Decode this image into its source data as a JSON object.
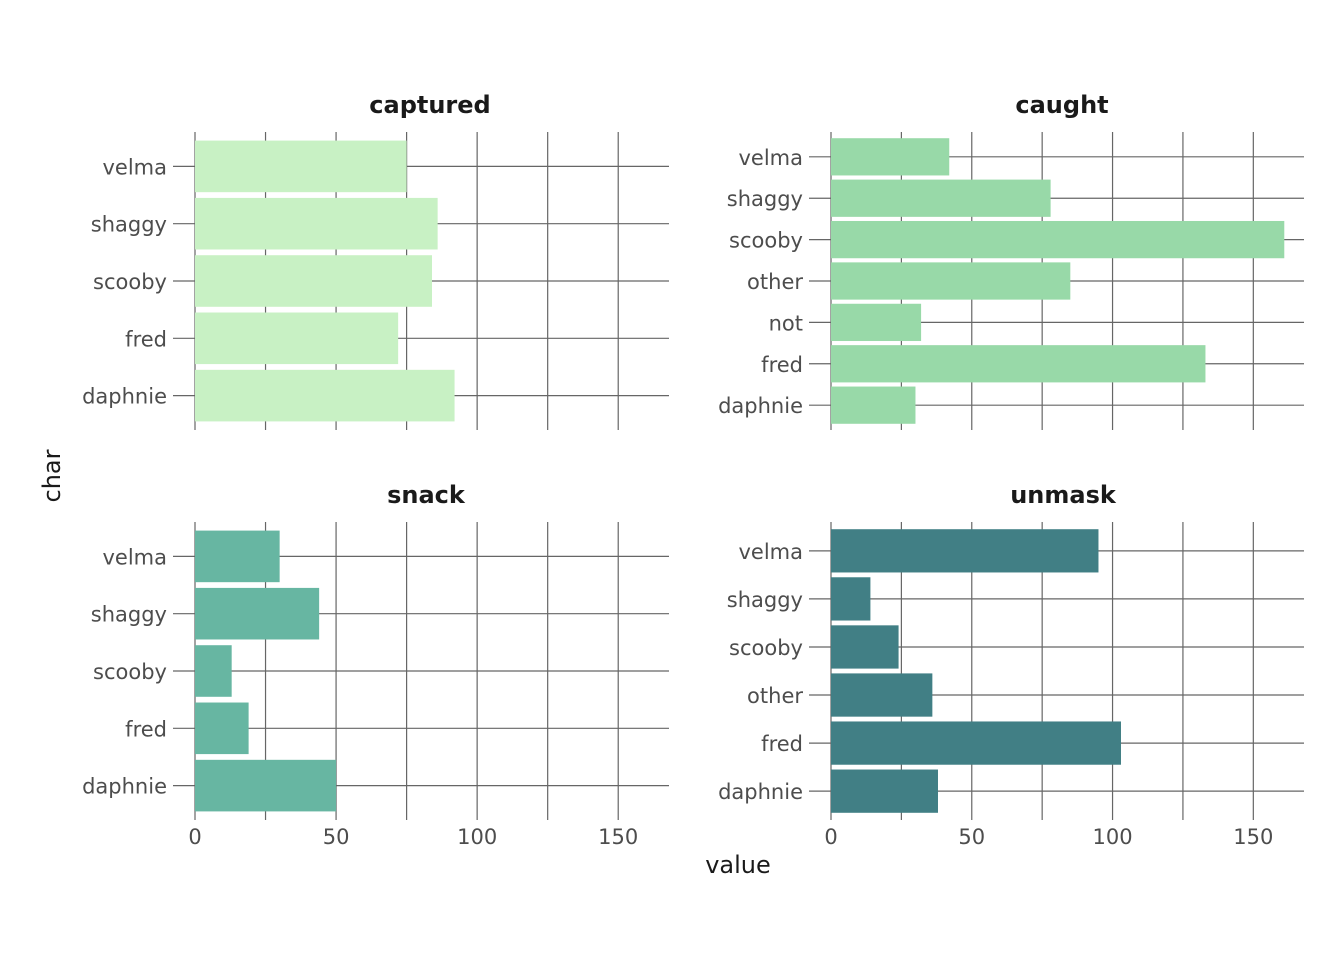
{
  "chart_data": {
    "type": "bar",
    "orientation": "horizontal",
    "xlabel": "value",
    "ylabel": "char",
    "xlim": [
      0,
      168
    ],
    "x_ticks": [
      0,
      50,
      100,
      150
    ],
    "grid": true,
    "facets": [
      {
        "title": "captured",
        "color": "#c8f1c4",
        "categories": [
          "velma",
          "shaggy",
          "scooby",
          "fred",
          "daphnie"
        ],
        "values": [
          75,
          86,
          84,
          72,
          92
        ]
      },
      {
        "title": "caught",
        "color": "#98d9a8",
        "categories": [
          "velma",
          "shaggy",
          "scooby",
          "other",
          "not",
          "fred",
          "daphnie"
        ],
        "values": [
          42,
          78,
          161,
          85,
          32,
          133,
          30
        ]
      },
      {
        "title": "snack",
        "color": "#67b6a2",
        "categories": [
          "velma",
          "shaggy",
          "scooby",
          "fred",
          "daphnie"
        ],
        "values": [
          30,
          44,
          13,
          19,
          50
        ]
      },
      {
        "title": "unmask",
        "color": "#417f85",
        "categories": [
          "velma",
          "shaggy",
          "scooby",
          "other",
          "fred",
          "daphnie"
        ],
        "values": [
          95,
          14,
          24,
          36,
          103,
          38
        ]
      }
    ]
  }
}
